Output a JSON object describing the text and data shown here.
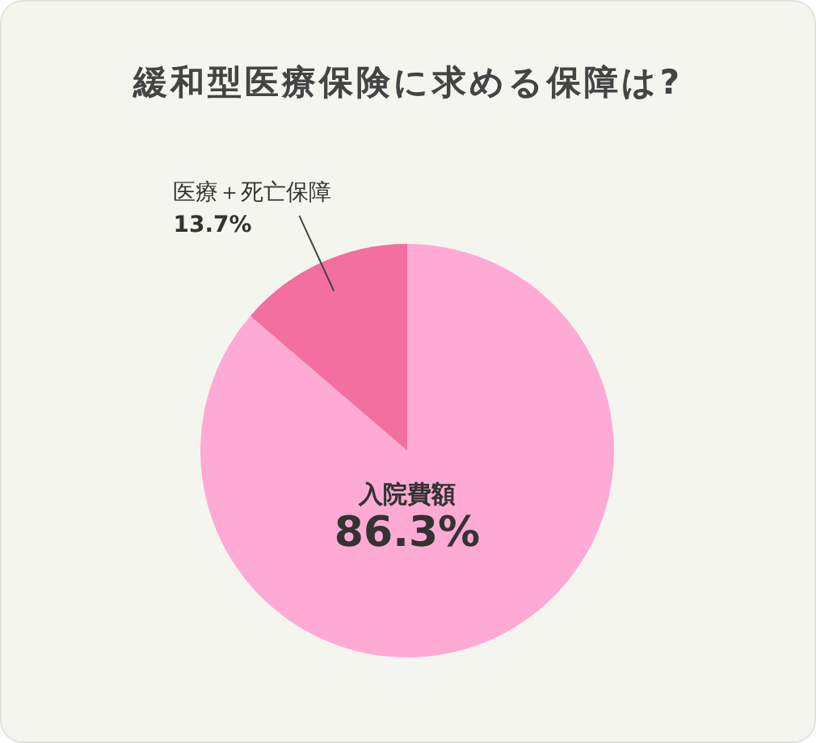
{
  "chart_data": {
    "type": "pie",
    "title": "緩和型医療保険に求める保障は?",
    "categories": [
      "入院費額",
      "医療＋死亡保障"
    ],
    "values": [
      86.3,
      13.7
    ],
    "colors": [
      "#ffaad4",
      "#f26f9f"
    ],
    "value_labels": [
      "86.3%",
      "13.7%"
    ]
  }
}
